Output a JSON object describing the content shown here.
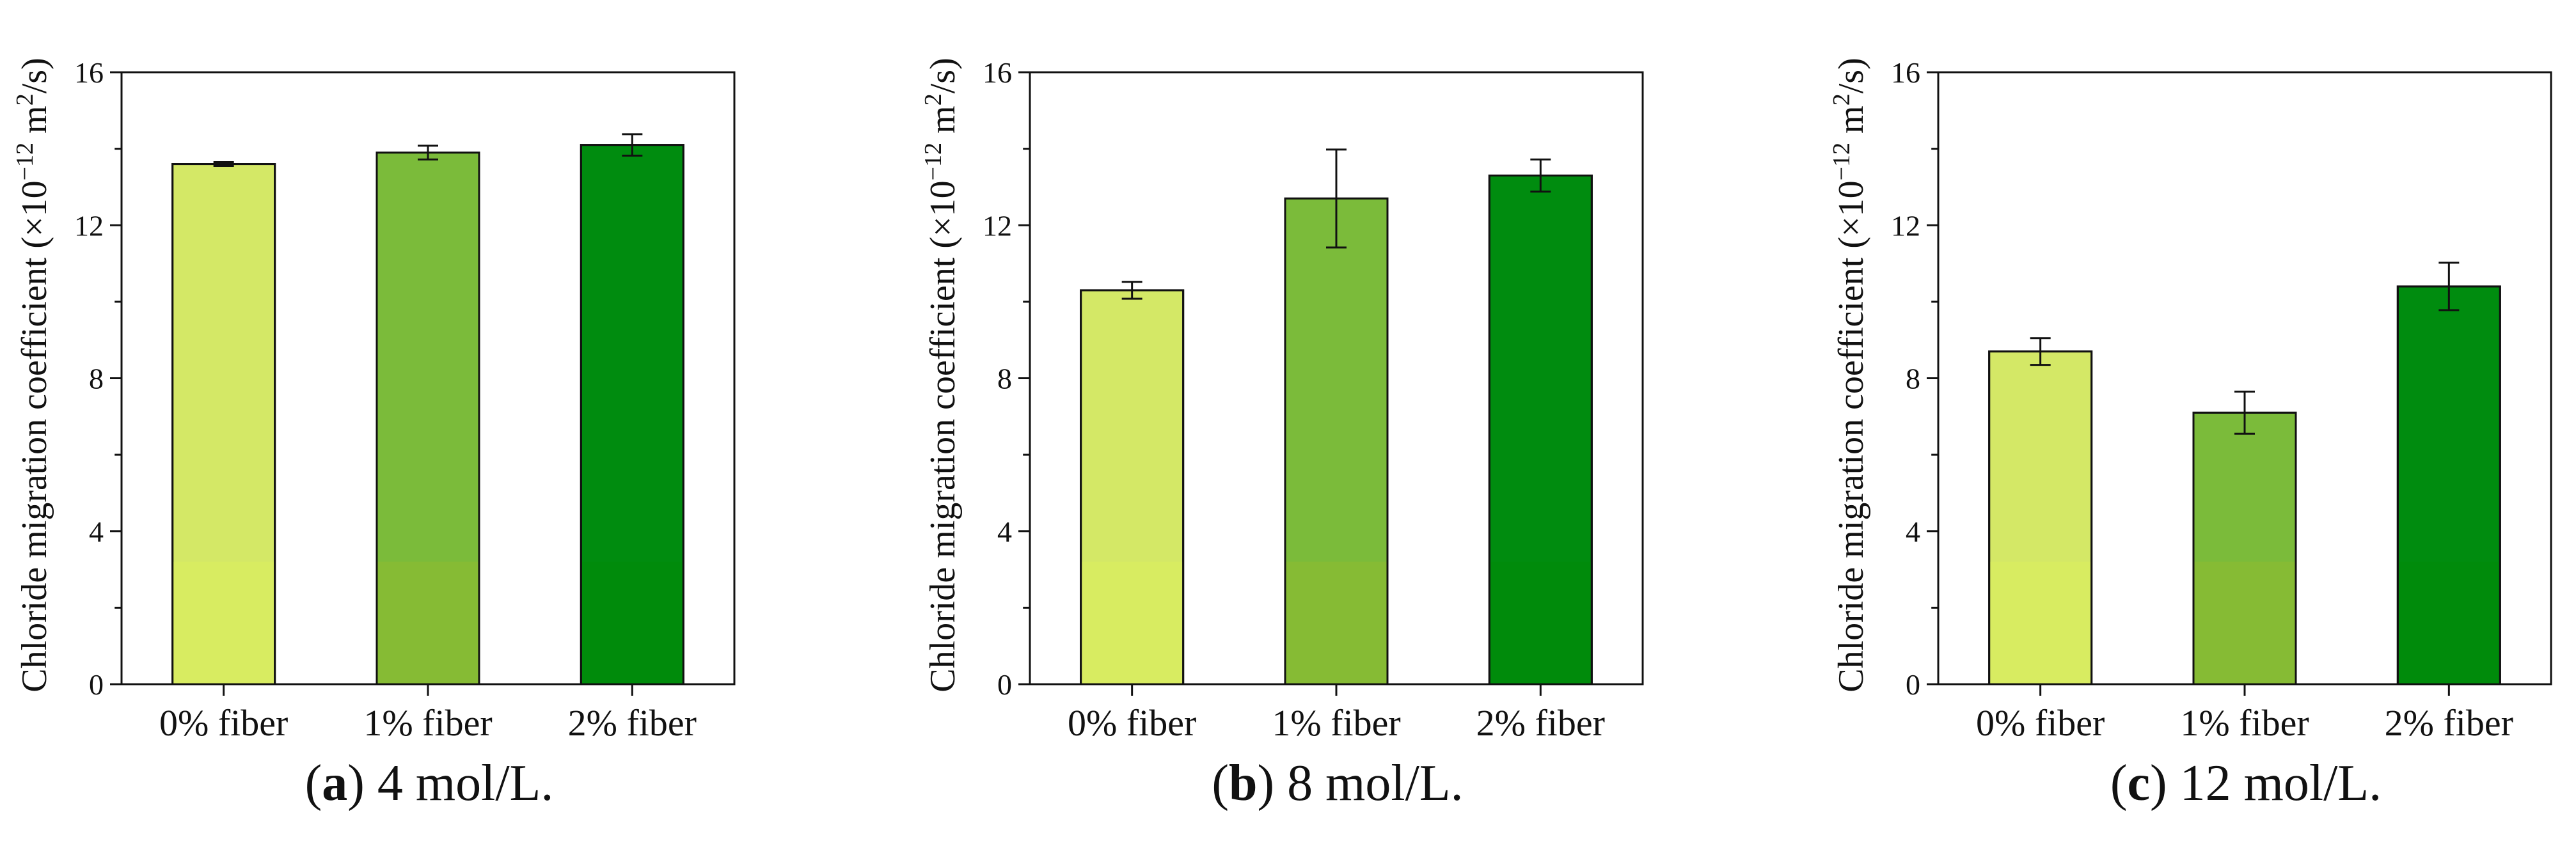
{
  "figure": {
    "colors": {
      "axis": "#111111",
      "bar_outline": "#111111",
      "error_bar": "#111111"
    }
  },
  "chart_data": [
    {
      "type": "bar",
      "panel_letter": "a",
      "caption_text": "4 mol/L.",
      "ylabel_main": "Chloride migration coefficient (×10",
      "ylabel_exp": "−12",
      "ylabel_mid": " m",
      "ylabel_exp2": "2",
      "ylabel_end": "/s)",
      "categories": [
        "0% fiber",
        "1% fiber",
        "2% fiber"
      ],
      "values": [
        13.6,
        13.9,
        14.1
      ],
      "errors": [
        0.05,
        0.18,
        0.28
      ],
      "bar_colors": [
        "#d4e866",
        "#7bbb3a",
        "#008c0f"
      ],
      "bar_colors_lower": [
        "#dbee5c",
        "#8fbb30",
        "#008a0a"
      ],
      "ylim": [
        0,
        16
      ],
      "yticks": [
        0,
        4,
        8,
        12,
        16
      ],
      "xlabel": ""
    },
    {
      "type": "bar",
      "panel_letter": "b",
      "caption_text": "8 mol/L.",
      "ylabel_main": "Chloride migration coefficient (×10",
      "ylabel_exp": "−12",
      "ylabel_mid": " m",
      "ylabel_exp2": "2",
      "ylabel_end": "/s)",
      "categories": [
        "0% fiber",
        "1% fiber",
        "2% fiber"
      ],
      "values": [
        10.3,
        12.7,
        13.3
      ],
      "errors": [
        0.22,
        1.28,
        0.42
      ],
      "bar_colors": [
        "#d4e866",
        "#7bbb3a",
        "#008c0f"
      ],
      "bar_colors_lower": [
        "#dbee5c",
        "#8fbb30",
        "#008a0a"
      ],
      "ylim": [
        0,
        16
      ],
      "yticks": [
        0,
        4,
        8,
        12,
        16
      ],
      "xlabel": ""
    },
    {
      "type": "bar",
      "panel_letter": "c",
      "caption_text": "12 mol/L.",
      "ylabel_main": "Chloride migration coefficient (×10",
      "ylabel_exp": "−12",
      "ylabel_mid": " m",
      "ylabel_exp2": "2",
      "ylabel_end": "/s)",
      "categories": [
        "0% fiber",
        "1% fiber",
        "2% fiber"
      ],
      "values": [
        8.7,
        7.1,
        10.4
      ],
      "errors": [
        0.35,
        0.55,
        0.62
      ],
      "bar_colors": [
        "#d4e866",
        "#7bbb3a",
        "#008c0f"
      ],
      "bar_colors_lower": [
        "#dbee5c",
        "#8fbb30",
        "#008a0a"
      ],
      "ylim": [
        0,
        16
      ],
      "yticks": [
        0,
        4,
        8,
        12,
        16
      ],
      "xlabel": ""
    }
  ]
}
